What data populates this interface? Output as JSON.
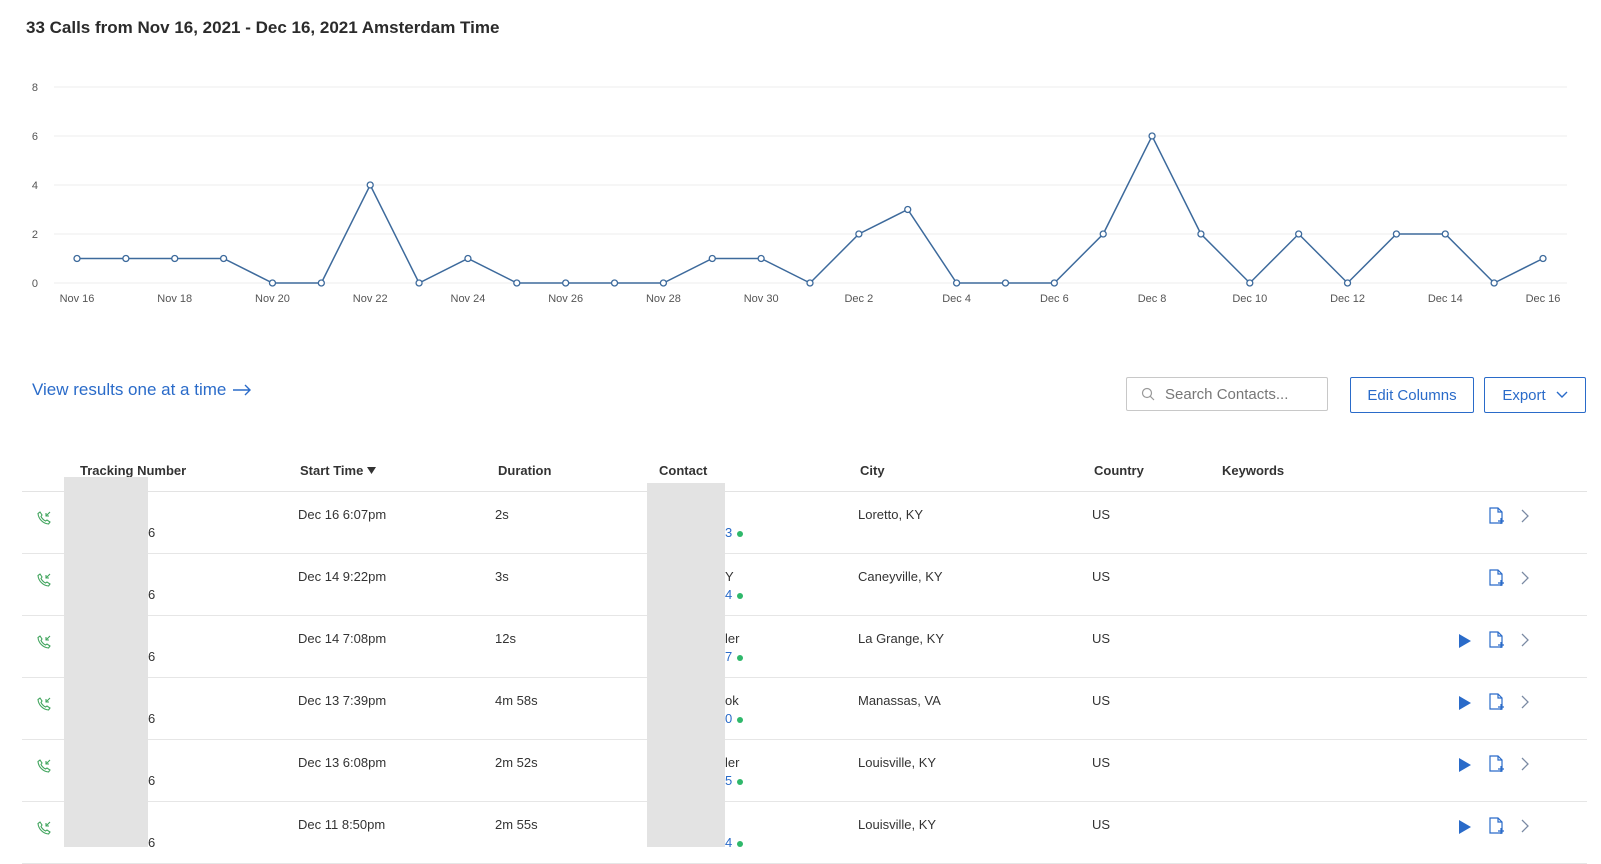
{
  "header": {
    "title": "33 Calls from Nov 16, 2021 - Dec 16, 2021 Amsterdam Time"
  },
  "chart_data": {
    "type": "line",
    "title": "",
    "xlabel": "",
    "ylabel": "",
    "ylim": [
      0,
      8
    ],
    "yticks": [
      0,
      2,
      4,
      6,
      8
    ],
    "grid": true,
    "x": [
      "Nov 16",
      "Nov 17",
      "Nov 18",
      "Nov 19",
      "Nov 20",
      "Nov 21",
      "Nov 22",
      "Nov 23",
      "Nov 24",
      "Nov 25",
      "Nov 26",
      "Nov 27",
      "Nov 28",
      "Nov 29",
      "Nov 30",
      "Dec 1",
      "Dec 2",
      "Dec 3",
      "Dec 4",
      "Dec 5",
      "Dec 6",
      "Dec 7",
      "Dec 8",
      "Dec 9",
      "Dec 10",
      "Dec 11",
      "Dec 12",
      "Dec 13",
      "Dec 14",
      "Dec 15",
      "Dec 16"
    ],
    "xtick_labels": [
      "Nov 16",
      "Nov 18",
      "Nov 20",
      "Nov 22",
      "Nov 24",
      "Nov 26",
      "Nov 28",
      "Nov 30",
      "Dec 2",
      "Dec 4",
      "Dec 6",
      "Dec 8",
      "Dec 10",
      "Dec 12",
      "Dec 14",
      "Dec 16"
    ],
    "values": [
      1,
      1,
      1,
      1,
      0,
      0,
      4,
      0,
      1,
      0,
      0,
      0,
      0,
      1,
      1,
      0,
      2,
      3,
      0,
      0,
      0,
      2,
      6,
      2,
      0,
      2,
      0,
      2,
      2,
      0,
      1
    ],
    "color": "#3d6a9c"
  },
  "results_link": {
    "label": "View results one at a time"
  },
  "search": {
    "placeholder": "Search Contacts..."
  },
  "toolbar": {
    "edit_columns_label": "Edit Columns",
    "export_label": "Export"
  },
  "table": {
    "columns": {
      "tracking_number": "Tracking Number",
      "start_time": "Start Time",
      "duration": "Duration",
      "contact": "Contact",
      "city": "City",
      "country": "Country",
      "keywords": "Keywords"
    },
    "rows": [
      {
        "tracking_suffix": "6",
        "start_time": "Dec 16 6:07pm",
        "duration": "2s",
        "contact_name": "",
        "contact_num": "3",
        "city": "Loretto, KY",
        "country": "US",
        "has_recording": false
      },
      {
        "tracking_suffix": "6",
        "start_time": "Dec 14 9:22pm",
        "duration": "3s",
        "contact_name": "Y",
        "contact_num": "4",
        "city": "Caneyville, KY",
        "country": "US",
        "has_recording": false
      },
      {
        "tracking_suffix": "6",
        "start_time": "Dec 14 7:08pm",
        "duration": "12s",
        "contact_name": "ler",
        "contact_num": "7",
        "city": "La Grange, KY",
        "country": "US",
        "has_recording": true
      },
      {
        "tracking_suffix": "6",
        "start_time": "Dec 13 7:39pm",
        "duration": "4m 58s",
        "contact_name": "ok",
        "contact_num": "0",
        "city": "Manassas, VA",
        "country": "US",
        "has_recording": true
      },
      {
        "tracking_suffix": "6",
        "start_time": "Dec 13 6:08pm",
        "duration": "2m 52s",
        "contact_name": "ler",
        "contact_num": "5",
        "city": "Louisville, KY",
        "country": "US",
        "has_recording": true
      },
      {
        "tracking_suffix": "6",
        "start_time": "Dec 11 8:50pm",
        "duration": "2m 55s",
        "contact_name": "",
        "contact_num": "4",
        "city": "Louisville, KY",
        "country": "US",
        "has_recording": true
      }
    ]
  },
  "icons": {
    "call": "incoming-call-icon",
    "play": "play-icon",
    "note": "add-note-icon",
    "detail": "chevron-right-icon",
    "search": "search-icon",
    "export": "chevron-down-icon",
    "link": "arrow-right-icon"
  },
  "colors": {
    "accent": "#2a6bc9",
    "call_icon": "#3fa45c",
    "status_dot": "#2fb86b"
  }
}
